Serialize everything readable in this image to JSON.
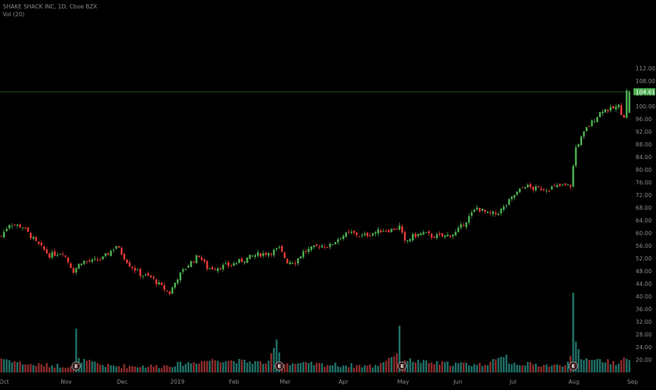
{
  "header": {
    "symbol_line": "SHAKE SHACK INC, 1D, Cboe BZX",
    "volume_line": "Vol (20)"
  },
  "last_price_label": "104.61",
  "earnings_marker_label": "E",
  "colors": {
    "background": "#000000",
    "up": "#26a69a",
    "down": "#ef5350",
    "candle_up": "#4caf50",
    "candle_down": "#e53935",
    "last_price": "#4caf50",
    "axis_text": "#8d8d8d",
    "volume_up": "#1f6f67",
    "volume_down": "#8b2b2b"
  },
  "chart_data": {
    "type": "candlestick",
    "y_axis": {
      "min": 16,
      "max": 114,
      "ticks": [
        "112.00",
        "108.00",
        "104.00",
        "100.00",
        "96.00",
        "92.00",
        "88.00",
        "84.00",
        "80.00",
        "76.00",
        "72.00",
        "68.00",
        "64.00",
        "60.00",
        "56.00",
        "52.00",
        "48.00",
        "44.00",
        "40.00",
        "36.00",
        "32.00",
        "28.00",
        "24.00",
        "20.00"
      ]
    },
    "x_axis": {
      "labels": [
        "Oct",
        "Nov",
        "Dec",
        "2019",
        "Feb",
        "Mar",
        "Apr",
        "May",
        "Jun",
        "Jul",
        "Aug",
        "Sep"
      ],
      "label_positions": [
        0,
        23,
        44,
        64,
        86,
        105,
        127,
        149,
        170,
        191,
        213,
        235
      ]
    },
    "earnings_markers": [
      28,
      104,
      150,
      214
    ],
    "last_price": 104.61,
    "close_anchors": [
      [
        0,
        59
      ],
      [
        3,
        63
      ],
      [
        8,
        62
      ],
      [
        13,
        57
      ],
      [
        18,
        53
      ],
      [
        23,
        54
      ],
      [
        27,
        48
      ],
      [
        30,
        51
      ],
      [
        34,
        51
      ],
      [
        38,
        52
      ],
      [
        43,
        56
      ],
      [
        48,
        50
      ],
      [
        52,
        47
      ],
      [
        56,
        46
      ],
      [
        60,
        43
      ],
      [
        63,
        41
      ],
      [
        66,
        46
      ],
      [
        70,
        50
      ],
      [
        74,
        53
      ],
      [
        77,
        49
      ],
      [
        80,
        49
      ],
      [
        86,
        50
      ],
      [
        89,
        51
      ],
      [
        95,
        53
      ],
      [
        101,
        54
      ],
      [
        104,
        55
      ],
      [
        107,
        51
      ],
      [
        110,
        51
      ],
      [
        113,
        54
      ],
      [
        119,
        56
      ],
      [
        123,
        56
      ],
      [
        127,
        59
      ],
      [
        131,
        60
      ],
      [
        135,
        59
      ],
      [
        139,
        60
      ],
      [
        143,
        61
      ],
      [
        146,
        61
      ],
      [
        149,
        62
      ],
      [
        151,
        57
      ],
      [
        154,
        59
      ],
      [
        158,
        60
      ],
      [
        161,
        59
      ],
      [
        166,
        59
      ],
      [
        170,
        60
      ],
      [
        174,
        64
      ],
      [
        178,
        68
      ],
      [
        182,
        66
      ],
      [
        185,
        66
      ],
      [
        188,
        68
      ],
      [
        192,
        72
      ],
      [
        196,
        75
      ],
      [
        199,
        74
      ],
      [
        204,
        74
      ],
      [
        210,
        75
      ],
      [
        213,
        75
      ],
      [
        215,
        87
      ],
      [
        219,
        93
      ],
      [
        222,
        96
      ],
      [
        225,
        99
      ],
      [
        228,
        99
      ],
      [
        231,
        100
      ],
      [
        232,
        98
      ],
      [
        233,
        97
      ],
      [
        234,
        104.61
      ]
    ],
    "volume_anchors": [
      [
        0,
        20.5
      ],
      [
        10,
        18.5
      ],
      [
        27,
        18
      ],
      [
        28,
        29.5
      ],
      [
        29,
        20
      ],
      [
        40,
        18
      ],
      [
        60,
        18
      ],
      [
        80,
        20
      ],
      [
        100,
        19
      ],
      [
        103,
        26
      ],
      [
        104,
        23
      ],
      [
        105,
        19
      ],
      [
        120,
        18.5
      ],
      [
        140,
        18
      ],
      [
        148,
        22
      ],
      [
        149,
        30
      ],
      [
        150,
        20
      ],
      [
        152,
        20
      ],
      [
        160,
        19
      ],
      [
        180,
        18.5
      ],
      [
        186,
        20
      ],
      [
        189,
        22
      ],
      [
        190,
        19
      ],
      [
        210,
        18
      ],
      [
        213,
        21
      ],
      [
        214,
        40.5
      ],
      [
        215,
        25
      ],
      [
        216,
        23
      ],
      [
        217,
        20
      ],
      [
        220,
        20.5
      ],
      [
        230,
        19
      ],
      [
        234,
        20.5
      ]
    ]
  }
}
